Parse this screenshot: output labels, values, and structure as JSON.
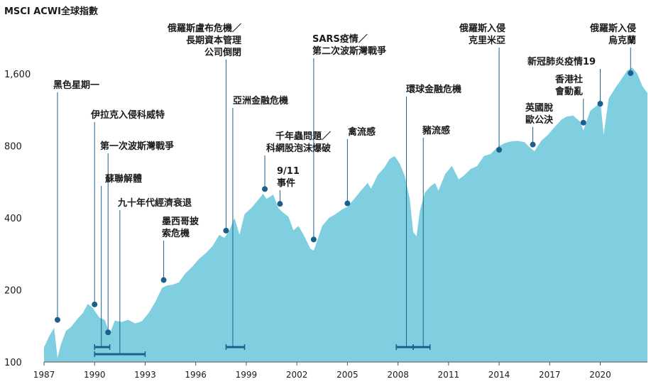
{
  "chart_data": {
    "type": "area",
    "title": "MSCI ACWI全球指數",
    "y_scale": "log",
    "ylim": [
      100,
      1900
    ],
    "xlim": [
      1987.0,
      2022.8
    ],
    "y_ticks": [
      100,
      200,
      400,
      800,
      1600
    ],
    "y_tick_labels": [
      "100",
      "200",
      "400",
      "800",
      "1,600"
    ],
    "x_ticks": [
      1987,
      1990,
      1993,
      1996,
      1999,
      2002,
      2005,
      2008,
      2011,
      2014,
      2017,
      2020
    ],
    "x_tick_labels": [
      "1987",
      "1990",
      "1993",
      "1996",
      "1999",
      "2002",
      "2005",
      "2008",
      "2011",
      "2014",
      "2017",
      "2020"
    ],
    "grid": false,
    "legend": "none",
    "colors": {
      "area": "#7fcfe0",
      "marker": "#1b5f8c",
      "text": "#1a1a1a"
    },
    "series": [
      {
        "x": [
          1987.0,
          1987.3,
          1987.6,
          1987.8,
          1988.0,
          1988.3,
          1988.6,
          1989.0,
          1989.3,
          1989.6,
          1989.9,
          1990.1,
          1990.3,
          1990.6,
          1990.9,
          1991.2,
          1991.6,
          1992.0,
          1992.4,
          1992.8,
          1993.2,
          1993.6,
          1994.0,
          1994.3,
          1994.6,
          1995.0,
          1995.4,
          1995.8,
          1996.2,
          1996.6,
          1997.0,
          1997.4,
          1997.7,
          1998.0,
          1998.3,
          1998.6,
          1998.9,
          1999.3,
          1999.7,
          2000.0,
          2000.2,
          2000.6,
          2000.9,
          2001.2,
          2001.5,
          2001.8,
          2002.1,
          2002.4,
          2002.8,
          2003.0,
          2003.2,
          2003.5,
          2003.9,
          2004.3,
          2004.7,
          2005.0,
          2005.4,
          2005.8,
          2006.2,
          2006.4,
          2006.8,
          2007.2,
          2007.5,
          2007.8,
          2008.1,
          2008.4,
          2008.7,
          2008.9,
          2009.1,
          2009.3,
          2009.6,
          2009.9,
          2010.2,
          2010.4,
          2010.8,
          2011.2,
          2011.6,
          2011.9,
          2012.3,
          2012.7,
          2013.1,
          2013.5,
          2013.9,
          2014.3,
          2014.7,
          2015.1,
          2015.5,
          2015.8,
          2016.1,
          2016.5,
          2016.9,
          2017.3,
          2017.7,
          2018.0,
          2018.4,
          2018.8,
          2019.0,
          2019.4,
          2019.8,
          2020.0,
          2020.2,
          2020.5,
          2020.9,
          2021.2,
          2021.6,
          2021.9,
          2022.2,
          2022.5,
          2022.8
        ],
        "y": [
          115,
          128,
          139,
          104,
          118,
          135,
          140,
          152,
          160,
          175,
          168,
          160,
          153,
          150,
          131,
          149,
          147,
          150,
          145,
          148,
          160,
          178,
          204,
          209,
          210,
          215,
          235,
          250,
          270,
          285,
          305,
          340,
          330,
          355,
          400,
          340,
          415,
          440,
          475,
          505,
          480,
          500,
          440,
          420,
          405,
          355,
          370,
          340,
          298,
          292,
          320,
          370,
          400,
          415,
          435,
          445,
          480,
          520,
          560,
          530,
          605,
          650,
          705,
          725,
          675,
          600,
          480,
          350,
          335,
          430,
          510,
          540,
          560,
          520,
          610,
          660,
          580,
          600,
          640,
          660,
          725,
          740,
          790,
          820,
          835,
          840,
          830,
          790,
          760,
          840,
          890,
          960,
          1030,
          1060,
          1070,
          1010,
          930,
          1120,
          1180,
          1250,
          890,
          1260,
          1400,
          1500,
          1650,
          1700,
          1600,
          1420,
          1330
        ]
      }
    ],
    "annotations": [
      {
        "label": [
          "黑色星期一"
        ],
        "x": 1987.8,
        "y": 150
      },
      {
        "label": [
          "伊拉克入侵科威特"
        ],
        "x": 1990.0,
        "y": 174
      },
      {
        "label": [
          "第一次波斯灣戰爭"
        ],
        "x": 1990.8,
        "y": 133
      },
      {
        "label": [
          "蘇聯解體"
        ],
        "x": 1990.4,
        "y": 0,
        "bar": [
          1990.0,
          1990.9
        ]
      },
      {
        "label": [
          "九十年代經濟衰退"
        ],
        "x": 1991.5,
        "y": 0,
        "bar": [
          1990.0,
          1993.0
        ]
      },
      {
        "label": [
          "墨西哥披",
          "索危機"
        ],
        "x": 1994.1,
        "y": 220
      },
      {
        "label": [
          "俄羅斯盧布危機／",
          "長期資本管理",
          "公司倒閉"
        ],
        "x": 1997.8,
        "y": 354
      },
      {
        "label": [
          "亞洲金融危機"
        ],
        "x": 1998.2,
        "y": 0,
        "bar": [
          1997.8,
          1998.9
        ]
      },
      {
        "label": [
          "千年蟲問題／",
          "科網股泡沫爆破"
        ],
        "x": 2000.1,
        "y": 528
      },
      {
        "label": [
          "9/11",
          "事件"
        ],
        "x": 2001.0,
        "y": 458
      },
      {
        "label": [
          "SARS疫情／",
          "第二次波斯灣戰爭"
        ],
        "x": 2003.0,
        "y": 325
      },
      {
        "label": [
          "禽流感"
        ],
        "x": 2005.0,
        "y": 460
      },
      {
        "label": [
          "環球金融危機"
        ],
        "x": 2008.5,
        "y": 0,
        "bar": [
          2007.9,
          2008.9
        ]
      },
      {
        "label": [
          "豬流感"
        ],
        "x": 2009.5,
        "y": 0,
        "bar": [
          2008.9,
          2009.9
        ]
      },
      {
        "label": [
          "俄羅斯入侵",
          "克里米亞"
        ],
        "x": 2014.0,
        "y": 770
      },
      {
        "label": [
          "英國脫",
          "歐公決"
        ],
        "x": 2016.0,
        "y": 810
      },
      {
        "label": [
          "香港社",
          "會動亂"
        ],
        "x": 2019.0,
        "y": 1000
      },
      {
        "label": [
          "新冠肺炎疫情19"
        ],
        "x": 2020.0,
        "y": 1200
      },
      {
        "label": [
          "俄羅斯入侵",
          "烏克蘭"
        ],
        "x": 2021.8,
        "y": 1610
      }
    ]
  }
}
